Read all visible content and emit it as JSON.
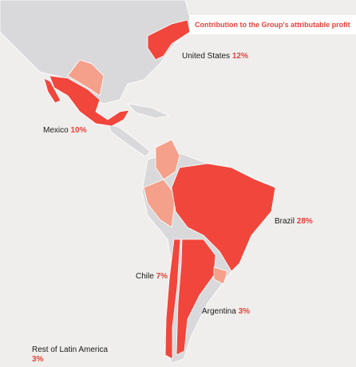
{
  "legend": {
    "title": "Contribution to the Group's attributable profit"
  },
  "regions": [
    {
      "name": "United States",
      "share": "12%"
    },
    {
      "name": "Mexico",
      "share": "10%"
    },
    {
      "name": "Brazil",
      "share": "28%"
    },
    {
      "name": "Chile",
      "share": "7%"
    },
    {
      "name": "Argentina",
      "share": "3%"
    },
    {
      "name": "Rest of Latin America",
      "share": "3%"
    }
  ]
}
